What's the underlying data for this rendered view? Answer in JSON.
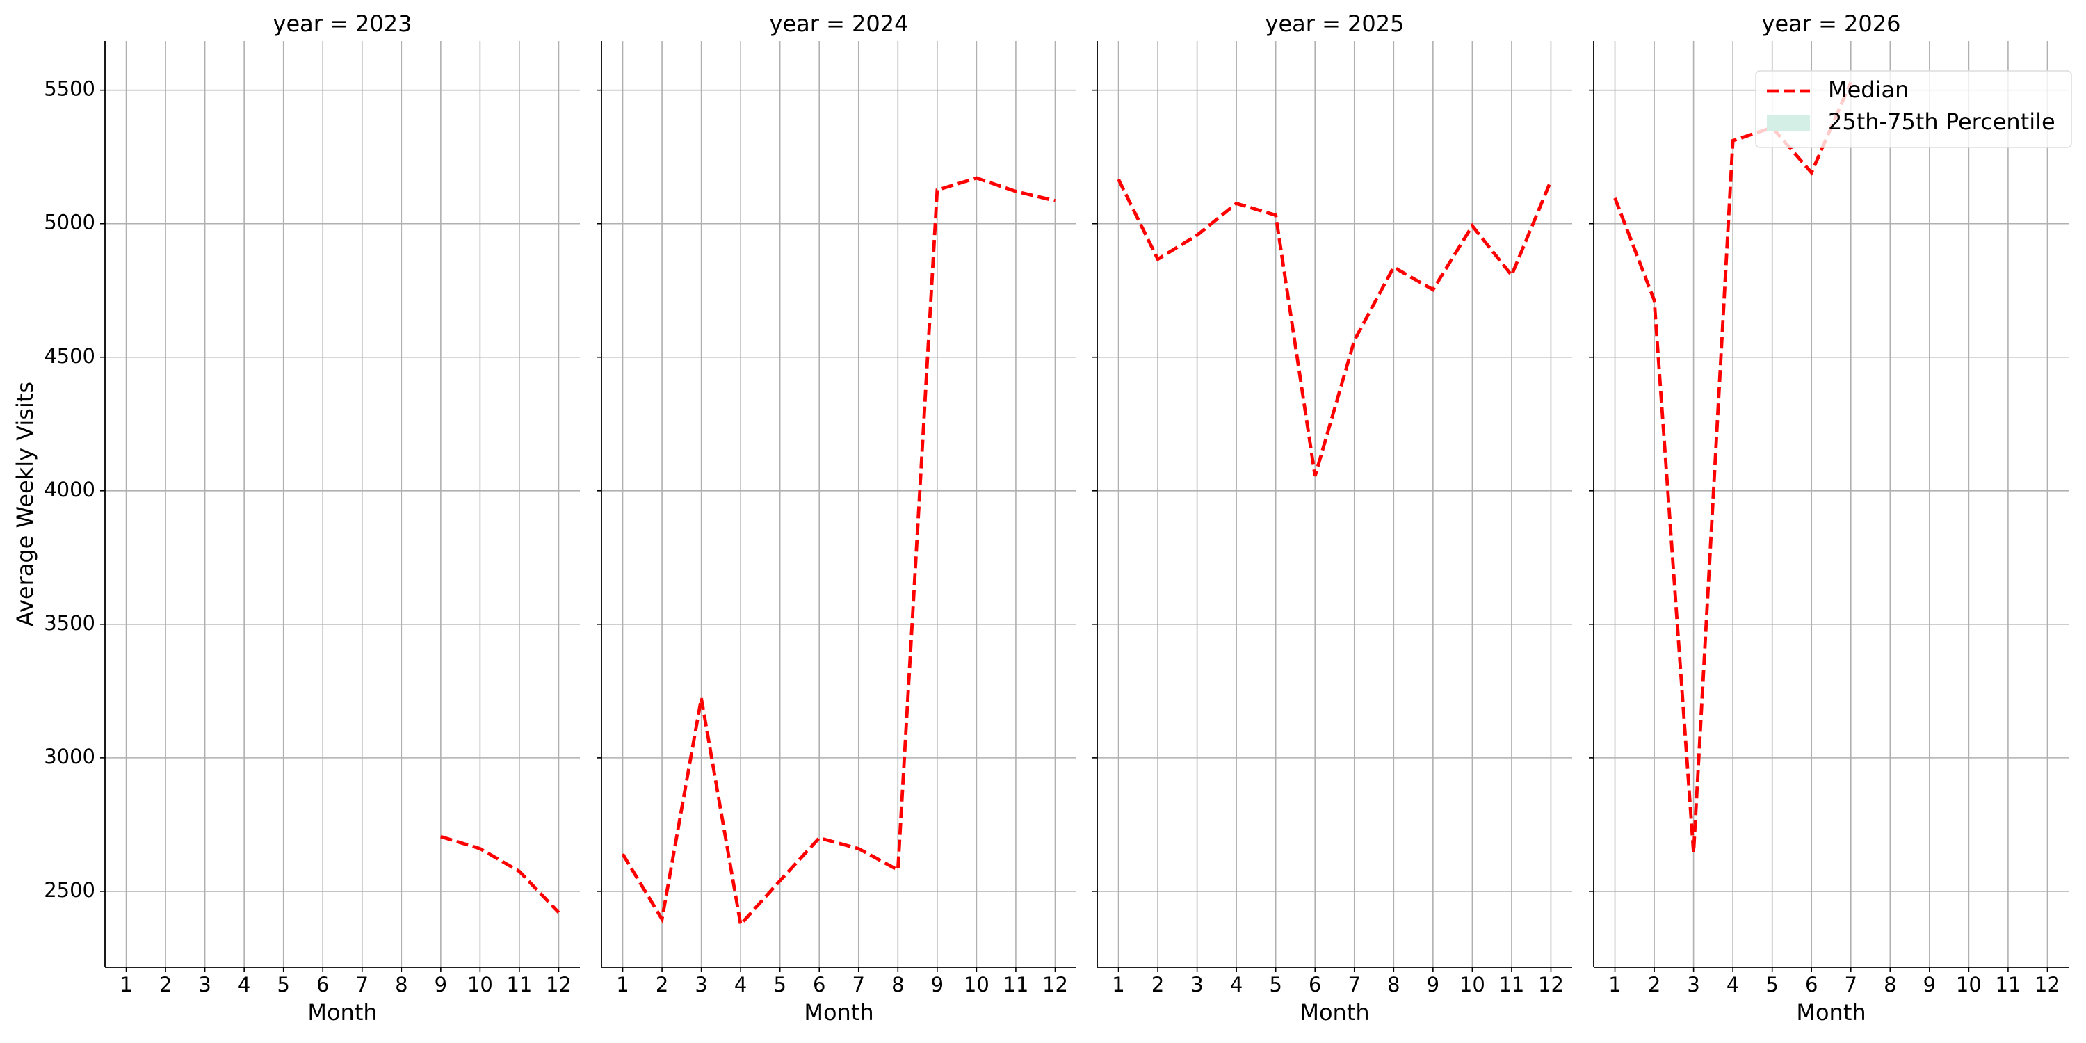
{
  "chart_data": [
    {
      "type": "line",
      "title": "year = 2023",
      "xlabel": "Month",
      "ylabel": "Average Weekly Visits",
      "x": [
        1,
        2,
        3,
        4,
        5,
        6,
        7,
        8,
        9,
        10,
        11,
        12
      ],
      "xlim": [
        0.46,
        12.54
      ],
      "xticks": [
        1,
        2,
        3,
        4,
        5,
        6,
        7,
        8,
        9,
        10,
        11,
        12
      ],
      "ylim": [
        2216,
        5684
      ],
      "yticks": [
        2500,
        3000,
        3500,
        4000,
        4500,
        5000,
        5500
      ],
      "grid": true,
      "series": [
        {
          "color": "#ff0000",
          "values": [
            null,
            null,
            null,
            null,
            null,
            null,
            null,
            null,
            2705,
            2660,
            2575,
            2421
          ]
        }
      ]
    },
    {
      "type": "line",
      "title": "year = 2024",
      "xlabel": "Month",
      "x": [
        1,
        2,
        3,
        4,
        5,
        6,
        7,
        8,
        9,
        10,
        11,
        12
      ],
      "xlim": [
        0.46,
        12.54
      ],
      "xticks": [
        1,
        2,
        3,
        4,
        5,
        6,
        7,
        8,
        9,
        10,
        11,
        12
      ],
      "ylim": [
        2216,
        5684
      ],
      "yticks": [
        2500,
        3000,
        3500,
        4000,
        4500,
        5000,
        5500
      ],
      "grid": true,
      "series": [
        {
          "color": "#ff0000",
          "values": [
            2640,
            2396,
            3223,
            2376,
            2540,
            2700,
            2660,
            2580,
            5126,
            5171,
            5121,
            5086
          ]
        }
      ]
    },
    {
      "type": "line",
      "title": "year = 2025",
      "xlabel": "Month",
      "x": [
        1,
        2,
        3,
        4,
        5,
        6,
        7,
        8,
        9,
        10,
        11,
        12
      ],
      "xlim": [
        0.46,
        12.54
      ],
      "xticks": [
        1,
        2,
        3,
        4,
        5,
        6,
        7,
        8,
        9,
        10,
        11,
        12
      ],
      "ylim": [
        2216,
        5684
      ],
      "yticks": [
        2500,
        3000,
        3500,
        4000,
        4500,
        5000,
        5500
      ],
      "grid": true,
      "series": [
        {
          "color": "#ff0000",
          "values": [
            5166,
            4867,
            4957,
            5076,
            5032,
            4055,
            4563,
            4837,
            4753,
            4992,
            4807,
            5161
          ]
        }
      ]
    },
    {
      "type": "line",
      "title": "year = 2026",
      "xlabel": "Month",
      "x": [
        1,
        2,
        3,
        4,
        5,
        6,
        7,
        8,
        9,
        10,
        11,
        12
      ],
      "xlim": [
        0.46,
        12.54
      ],
      "xticks": [
        1,
        2,
        3,
        4,
        5,
        6,
        7,
        8,
        9,
        10,
        11,
        12
      ],
      "ylim": [
        2216,
        5684
      ],
      "yticks": [
        2500,
        3000,
        3500,
        4000,
        4500,
        5000,
        5500
      ],
      "grid": true,
      "series": [
        {
          "name": "Median",
          "color": "#ff0000",
          "values": [
            5096,
            4713,
            2645,
            5311,
            5360,
            5191,
            5530,
            null,
            null,
            null,
            null,
            null
          ]
        }
      ],
      "band": {
        "name": "25th-75th Percentile",
        "color": "#d4f0e6"
      },
      "legend": "upper right"
    }
  ]
}
